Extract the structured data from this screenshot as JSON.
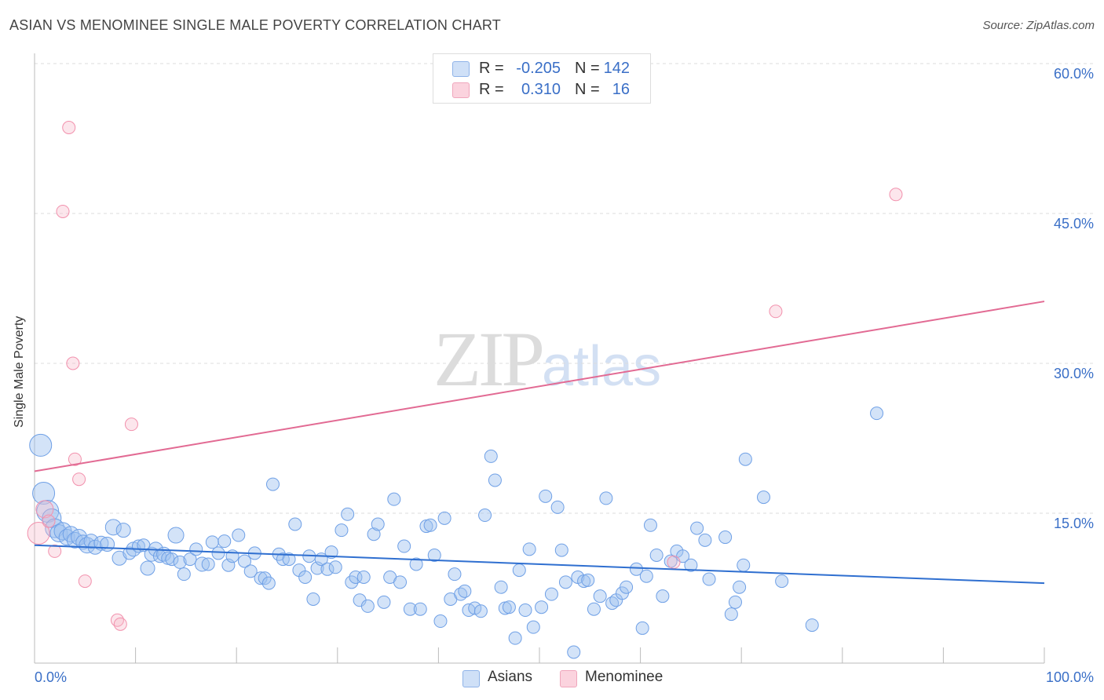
{
  "title": "ASIAN VS MENOMINEE SINGLE MALE POVERTY CORRELATION CHART",
  "source": "Source: ZipAtlas.com",
  "watermark": {
    "zip": "ZIP",
    "atlas": "atlas"
  },
  "legend": {
    "rows": [
      {
        "r_label": "R =",
        "r_value": "-0.205",
        "n_label": "N =",
        "n_value": "142",
        "color": "#9dc0ef"
      },
      {
        "r_label": "R =",
        "r_value": "0.310",
        "n_label": "N =",
        "n_value": "16",
        "color": "#f7b8c8"
      }
    ]
  },
  "bottom_legend": [
    {
      "label": "Asians",
      "color": "#9dc0ef"
    },
    {
      "label": "Menominee",
      "color": "#f7b8c8"
    }
  ],
  "chart_data": {
    "type": "scatter",
    "xlabel": "",
    "ylabel": "Single Male Poverty",
    "xlim": [
      0,
      100
    ],
    "ylim": [
      0,
      60
    ],
    "x_tick_labels": [
      "0.0%",
      "100.0%"
    ],
    "y_tick_labels": [
      "15.0%",
      "30.0%",
      "45.0%",
      "60.0%"
    ],
    "y_ticks": [
      15,
      30,
      45,
      60
    ],
    "grid": true,
    "series": [
      {
        "name": "Asians",
        "color": "#6fa0e6",
        "trend": {
          "x": [
            0,
            100
          ],
          "y": [
            11.8,
            8.0
          ],
          "color": "#2f6fd0"
        },
        "points": [
          [
            0.6,
            21.8,
            14
          ],
          [
            0.9,
            17.0,
            14
          ],
          [
            1.3,
            15.2,
            14
          ],
          [
            1.7,
            14.5,
            12
          ],
          [
            2.0,
            13.5,
            12
          ],
          [
            2.4,
            13.0,
            11
          ],
          [
            2.8,
            13.2,
            11
          ],
          [
            3.2,
            12.6,
            10
          ],
          [
            3.6,
            12.9,
            10
          ],
          [
            4.0,
            12.3,
            10
          ],
          [
            4.4,
            12.6,
            10
          ],
          [
            4.8,
            12.1,
            9
          ],
          [
            5.2,
            11.8,
            10
          ],
          [
            5.6,
            12.2,
            9
          ],
          [
            6.0,
            11.6,
            9
          ],
          [
            6.6,
            12.0,
            9
          ],
          [
            7.2,
            11.9,
            9
          ],
          [
            7.8,
            13.6,
            10
          ],
          [
            8.4,
            10.5,
            9
          ],
          [
            8.8,
            13.3,
            9
          ],
          [
            9.4,
            11.0,
            8
          ],
          [
            9.8,
            11.4,
            9
          ],
          [
            10.3,
            11.7,
            8
          ],
          [
            10.8,
            11.8,
            8
          ],
          [
            11.2,
            9.5,
            9
          ],
          [
            11.6,
            10.9,
            9
          ],
          [
            12.0,
            11.4,
            9
          ],
          [
            12.4,
            10.7,
            8
          ],
          [
            12.8,
            10.9,
            9
          ],
          [
            13.2,
            10.5,
            8
          ],
          [
            13.6,
            10.4,
            8
          ],
          [
            14.0,
            12.8,
            10
          ],
          [
            14.4,
            10.1,
            8
          ],
          [
            14.8,
            8.9,
            8
          ],
          [
            15.4,
            10.4,
            8
          ],
          [
            16.0,
            11.4,
            8
          ],
          [
            16.6,
            9.9,
            9
          ],
          [
            17.2,
            9.9,
            8
          ],
          [
            17.6,
            12.1,
            8
          ],
          [
            18.2,
            11.0,
            8
          ],
          [
            18.8,
            12.2,
            8
          ],
          [
            19.2,
            9.8,
            8
          ],
          [
            19.6,
            10.7,
            8
          ],
          [
            20.2,
            12.8,
            8
          ],
          [
            20.8,
            10.2,
            8
          ],
          [
            21.4,
            9.2,
            8
          ],
          [
            21.8,
            11.0,
            8
          ],
          [
            22.4,
            8.5,
            8
          ],
          [
            22.8,
            8.5,
            8
          ],
          [
            23.2,
            8.0,
            8
          ],
          [
            23.6,
            17.9,
            8
          ],
          [
            24.2,
            10.9,
            8
          ],
          [
            24.6,
            10.4,
            8
          ],
          [
            25.2,
            10.4,
            8
          ],
          [
            25.8,
            13.9,
            8
          ],
          [
            26.2,
            9.3,
            8
          ],
          [
            26.8,
            8.6,
            8
          ],
          [
            27.2,
            10.7,
            8
          ],
          [
            27.6,
            6.4,
            8
          ],
          [
            28.0,
            9.5,
            8
          ],
          [
            28.4,
            10.4,
            8
          ],
          [
            29.0,
            9.4,
            8
          ],
          [
            29.4,
            11.1,
            8
          ],
          [
            29.8,
            9.6,
            8
          ],
          [
            30.4,
            13.3,
            8
          ],
          [
            31.0,
            14.9,
            8
          ],
          [
            31.4,
            8.1,
            8
          ],
          [
            31.8,
            8.6,
            8
          ],
          [
            32.2,
            6.3,
            8
          ],
          [
            32.6,
            8.6,
            8
          ],
          [
            33.0,
            5.7,
            8
          ],
          [
            33.6,
            12.9,
            8
          ],
          [
            34.0,
            13.9,
            8
          ],
          [
            34.6,
            6.1,
            8
          ],
          [
            35.2,
            8.6,
            8
          ],
          [
            35.6,
            16.4,
            8
          ],
          [
            36.2,
            8.1,
            8
          ],
          [
            36.6,
            11.7,
            8
          ],
          [
            37.2,
            5.4,
            8
          ],
          [
            37.8,
            9.9,
            8
          ],
          [
            38.2,
            5.4,
            8
          ],
          [
            38.8,
            13.7,
            8
          ],
          [
            39.2,
            13.8,
            8
          ],
          [
            39.6,
            10.8,
            8
          ],
          [
            40.2,
            4.2,
            8
          ],
          [
            40.6,
            14.5,
            8
          ],
          [
            41.2,
            6.4,
            8
          ],
          [
            41.6,
            8.9,
            8
          ],
          [
            42.2,
            6.9,
            8
          ],
          [
            42.6,
            7.2,
            8
          ],
          [
            43.0,
            5.3,
            8
          ],
          [
            43.6,
            5.5,
            8
          ],
          [
            44.2,
            5.2,
            8
          ],
          [
            44.6,
            14.8,
            8
          ],
          [
            45.2,
            20.7,
            8
          ],
          [
            45.6,
            18.3,
            8
          ],
          [
            46.2,
            7.6,
            8
          ],
          [
            46.6,
            5.5,
            8
          ],
          [
            47.0,
            5.6,
            8
          ],
          [
            47.6,
            2.5,
            8
          ],
          [
            48.0,
            9.3,
            8
          ],
          [
            48.6,
            5.3,
            8
          ],
          [
            49.0,
            11.4,
            8
          ],
          [
            49.4,
            3.6,
            8
          ],
          [
            50.2,
            5.6,
            8
          ],
          [
            50.6,
            16.7,
            8
          ],
          [
            51.2,
            6.9,
            8
          ],
          [
            51.8,
            15.6,
            8
          ],
          [
            52.2,
            11.3,
            8
          ],
          [
            52.6,
            8.1,
            8
          ],
          [
            53.4,
            1.1,
            8
          ],
          [
            53.8,
            8.6,
            8
          ],
          [
            54.4,
            8.2,
            8
          ],
          [
            54.8,
            8.3,
            8
          ],
          [
            55.4,
            5.4,
            8
          ],
          [
            56.0,
            6.7,
            8
          ],
          [
            56.6,
            16.5,
            8
          ],
          [
            57.2,
            6.0,
            8
          ],
          [
            57.6,
            6.3,
            8
          ],
          [
            58.2,
            7.0,
            8
          ],
          [
            58.6,
            7.6,
            8
          ],
          [
            59.6,
            9.4,
            8
          ],
          [
            60.2,
            3.5,
            8
          ],
          [
            60.6,
            8.7,
            8
          ],
          [
            61.0,
            13.8,
            8
          ],
          [
            61.6,
            10.8,
            8
          ],
          [
            62.2,
            6.7,
            8
          ],
          [
            63.0,
            10.2,
            8
          ],
          [
            63.6,
            11.2,
            8
          ],
          [
            64.2,
            10.7,
            8
          ],
          [
            65.0,
            9.8,
            8
          ],
          [
            65.6,
            13.5,
            8
          ],
          [
            66.4,
            12.3,
            8
          ],
          [
            66.8,
            8.4,
            8
          ],
          [
            68.4,
            12.6,
            8
          ],
          [
            69.0,
            4.9,
            8
          ],
          [
            69.4,
            6.1,
            8
          ],
          [
            69.8,
            7.6,
            8
          ],
          [
            70.2,
            9.8,
            8
          ],
          [
            70.4,
            20.4,
            8
          ],
          [
            72.2,
            16.6,
            8
          ],
          [
            74.0,
            8.2,
            8
          ],
          [
            77.0,
            3.8,
            8
          ],
          [
            83.4,
            25.0,
            8
          ]
        ]
      },
      {
        "name": "Menominee",
        "color": "#f291ad",
        "trend": {
          "x": [
            0,
            100
          ],
          "y": [
            19.2,
            36.2
          ],
          "color": "#e26a93"
        },
        "points": [
          [
            0.4,
            13.0,
            14
          ],
          [
            1.0,
            15.4,
            11
          ],
          [
            1.4,
            14.2,
            8
          ],
          [
            2.0,
            11.2,
            8
          ],
          [
            2.8,
            45.2,
            8
          ],
          [
            3.4,
            53.6,
            8
          ],
          [
            3.8,
            30.0,
            8
          ],
          [
            4.0,
            20.4,
            8
          ],
          [
            4.4,
            18.4,
            8
          ],
          [
            5.0,
            8.2,
            8
          ],
          [
            8.2,
            4.3,
            8
          ],
          [
            8.5,
            3.9,
            8
          ],
          [
            9.6,
            23.9,
            8
          ],
          [
            63.3,
            10.1,
            8
          ],
          [
            73.4,
            35.2,
            8
          ],
          [
            85.3,
            46.9,
            8
          ]
        ]
      }
    ]
  }
}
